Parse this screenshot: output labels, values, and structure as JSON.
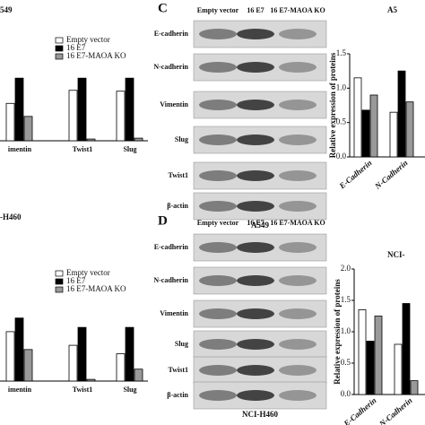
{
  "legend": [
    "Empty vector",
    "16 E7",
    "16 E7-MAOA KO"
  ],
  "left_top": {
    "title": "549",
    "categories": [
      "imentin",
      "Twist1",
      "Slug"
    ],
    "ylim": [
      0,
      1
    ],
    "series": [
      {
        "name": "Empty vector",
        "color": "#ffffff",
        "values": [
          0.43,
          0.58,
          0.57
        ]
      },
      {
        "name": "16 E7",
        "color": "#000000",
        "values": [
          0.72,
          0.72,
          0.72
        ]
      },
      {
        "name": "16 E7-MAOA KO",
        "color": "#999999",
        "values": [
          0.28,
          0.02,
          0.03
        ]
      }
    ]
  },
  "left_bottom": {
    "title": "-H460",
    "categories": [
      "imentin",
      "Twist1",
      "Slug"
    ],
    "ylim": [
      0,
      1
    ],
    "series": [
      {
        "name": "Empty vector",
        "color": "#ffffff",
        "values": [
          0.58,
          0.42,
          0.32
        ]
      },
      {
        "name": "16 E7",
        "color": "#000000",
        "values": [
          0.74,
          0.63,
          0.63
        ]
      },
      {
        "name": "16 E7-MAOA KO",
        "color": "#999999",
        "values": [
          0.37,
          0.02,
          0.14
        ]
      }
    ]
  },
  "blot_top": {
    "letter": "C",
    "columns": [
      "Empty vector",
      "16 E7",
      "16 E7-MAOA KO"
    ],
    "rows": [
      "E-cadherin",
      "N-cadherin",
      "Vimentin",
      "Slug",
      "Twist1",
      "β-actin"
    ],
    "caption": "A549"
  },
  "blot_bottom": {
    "letter": "D",
    "columns": [
      "Empty vector",
      "16 E7",
      "16 E7-MAOA KO"
    ],
    "rows": [
      "E-cadherin",
      "N-cadherin",
      "Vimentin",
      "Slug",
      "Twist1",
      "β-actin"
    ],
    "caption": "NCI-H460"
  },
  "right_top": {
    "title": "A5",
    "ylabel": "Relative expression of proteins",
    "categories": [
      "E-Cadherin",
      "N-Cadherin"
    ],
    "ylim": [
      0,
      1.5
    ],
    "yticks": [
      {
        "value": 0,
        "label": "0.0"
      },
      {
        "value": 0.5,
        "label": "0.5"
      },
      {
        "value": 1,
        "label": "1.0"
      },
      {
        "value": 1.5,
        "label": "1.5"
      }
    ],
    "series": [
      {
        "name": "Empty vector",
        "color": "#ffffff",
        "values": [
          1.15,
          0.65
        ]
      },
      {
        "name": "16 E7",
        "color": "#000000",
        "values": [
          0.68,
          1.25
        ]
      },
      {
        "name": "16 E7-MAOA KO",
        "color": "#999999",
        "values": [
          0.9,
          0.8
        ]
      }
    ]
  },
  "right_bottom": {
    "title": "NCI-",
    "ylabel": "Relative expression of proteins",
    "categories": [
      "E-Cadherin",
      "N-Cadherin"
    ],
    "ylim": [
      0,
      2
    ],
    "yticks": [
      {
        "value": 0,
        "label": "0.0"
      },
      {
        "value": 0.5,
        "label": "0.5"
      },
      {
        "value": 1,
        "label": "1.0"
      },
      {
        "value": 1.5,
        "label": "1.5"
      },
      {
        "value": 2,
        "label": "2.0"
      }
    ],
    "series": [
      {
        "name": "Empty vector",
        "color": "#ffffff",
        "values": [
          1.35,
          0.8
        ]
      },
      {
        "name": "16 E7",
        "color": "#000000",
        "values": [
          0.85,
          1.45
        ]
      },
      {
        "name": "16 E7-MAOA KO",
        "color": "#999999",
        "values": [
          1.25,
          0.22
        ]
      }
    ]
  }
}
